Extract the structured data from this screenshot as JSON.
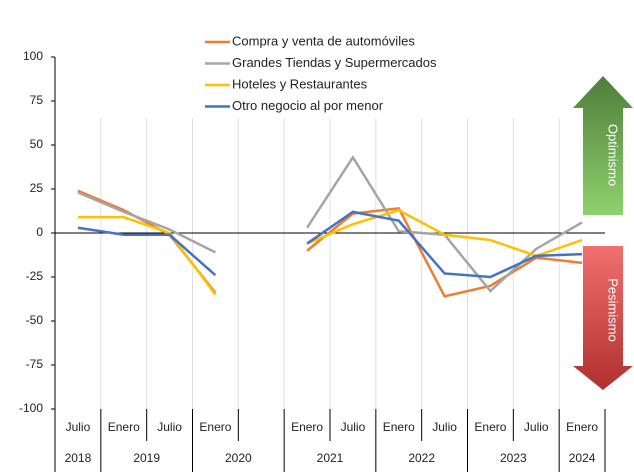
{
  "chart_data": {
    "type": "line",
    "categories": [
      "Julio",
      "Enero",
      "Julio",
      "Enero",
      null,
      "Enero",
      "Julio",
      "Enero",
      "Julio",
      "Enero",
      "Julio",
      "Enero"
    ],
    "years": [
      "2018",
      "2019",
      "2019",
      "2020",
      "2020",
      "2021",
      "2021",
      "2022",
      "2022",
      "2023",
      "2023",
      "2024"
    ],
    "series": [
      {
        "name": "Compra y venta de automóviles",
        "color": "#ed7d31",
        "values": [
          24,
          13,
          -1,
          -34,
          null,
          -10,
          11,
          14,
          -36,
          -30,
          -14,
          -17
        ]
      },
      {
        "name": "Grandes Tiendas y Supermercados",
        "color": "#a5a5a5",
        "values": [
          23,
          12,
          2,
          -11,
          null,
          3,
          43,
          1,
          -1,
          -33,
          -9,
          6
        ]
      },
      {
        "name": "Hoteles y Restaurantes",
        "color": "#ffc000",
        "values": [
          9,
          9,
          0,
          -35,
          null,
          -6,
          5,
          13,
          -1,
          -4,
          -13,
          -4
        ]
      },
      {
        "name": "Otro negocio al por menor",
        "color": "#4472c4",
        "values": [
          3,
          -1,
          -1,
          -24,
          null,
          -6,
          12,
          7,
          -23,
          -25,
          -13,
          -12
        ]
      }
    ],
    "ylim": [
      -100,
      100
    ],
    "yticks": [
      -100,
      -75,
      -50,
      -25,
      0,
      25,
      50,
      75,
      100
    ],
    "annotations": [
      "Optimismo",
      "Pesimismo"
    ]
  }
}
